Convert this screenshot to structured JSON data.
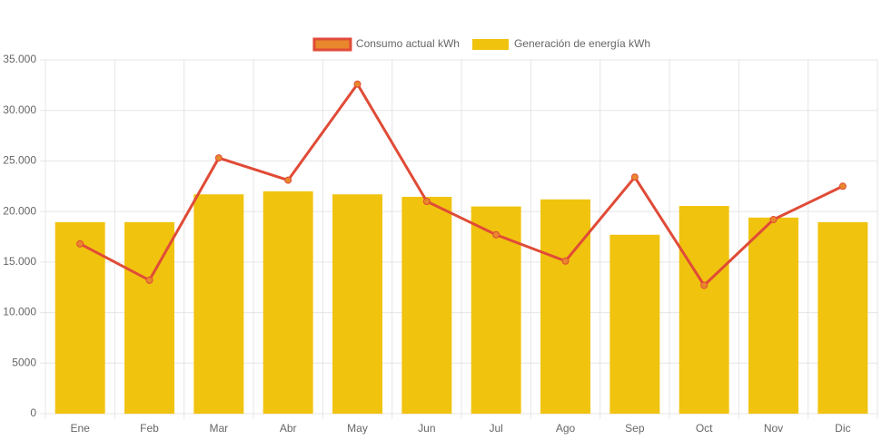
{
  "chart_data": {
    "type": "bar",
    "categories": [
      "Ene",
      "Feb",
      "Mar",
      "Abr",
      "May",
      "Jun",
      "Jul",
      "Ago",
      "Sep",
      "Oct",
      "Nov",
      "Dic"
    ],
    "series": [
      {
        "name": "Consumo actual kWh",
        "type": "line",
        "color": "#e04b37",
        "legend_fill": "#e8872c",
        "values": [
          16800,
          13200,
          25300,
          23100,
          32600,
          21000,
          17700,
          15100,
          23400,
          12700,
          19200,
          22500
        ]
      },
      {
        "name": "Generación de energía kWh",
        "type": "bar",
        "color": "#f0c30f",
        "values": [
          18950,
          18950,
          21700,
          22000,
          21700,
          21450,
          20500,
          21200,
          17700,
          20550,
          19400,
          18950
        ]
      }
    ],
    "ylim": [
      0,
      35000
    ],
    "yticks": [
      0,
      5000,
      {
        "value": 10000,
        "label": "10.000"
      },
      {
        "value": 15000,
        "label": "15.000"
      },
      {
        "value": 20000,
        "label": "20.000"
      },
      {
        "value": 25000,
        "label": "25.000"
      },
      {
        "value": 30000,
        "label": "30.000"
      },
      {
        "value": 35000,
        "label": "35.000"
      }
    ],
    "grid": true,
    "legend": "top"
  }
}
